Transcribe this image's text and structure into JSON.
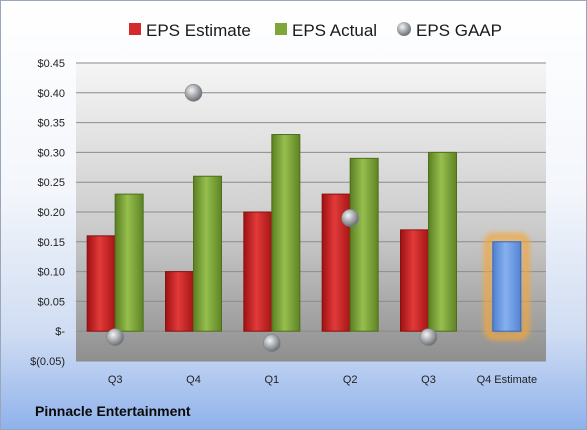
{
  "company": "Pinnacle Entertainment",
  "chart_data": {
    "type": "bar",
    "categories": [
      "Q3",
      "Q4",
      "Q1",
      "Q2",
      "Q3",
      "Q4 Estimate"
    ],
    "series": [
      {
        "name": "EPS Estimate",
        "values": [
          0.16,
          0.1,
          0.2,
          0.23,
          0.17,
          null
        ],
        "color": "#d42a2a"
      },
      {
        "name": "EPS Actual",
        "values": [
          0.23,
          0.26,
          0.33,
          0.29,
          0.3,
          null
        ],
        "color": "#7ea63a"
      },
      {
        "name": "EPS GAAP",
        "values": [
          -0.01,
          0.4,
          -0.02,
          0.19,
          -0.01,
          null
        ],
        "color": "#a9adb3",
        "marker": "sphere"
      }
    ],
    "forecast": {
      "category": "Q4 Estimate",
      "value": 0.15,
      "color": "#6f9ee8",
      "glow": "#f4a73a"
    },
    "y_ticks": [
      "$0.45",
      "$0.40",
      "$0.35",
      "$0.30",
      "$0.25",
      "$0.20",
      "$0.15",
      "$0.10",
      "$0.05",
      "$-",
      "$(0.05)"
    ],
    "ylim": [
      -0.05,
      0.45
    ],
    "legend_position": "top",
    "grid": true
  }
}
